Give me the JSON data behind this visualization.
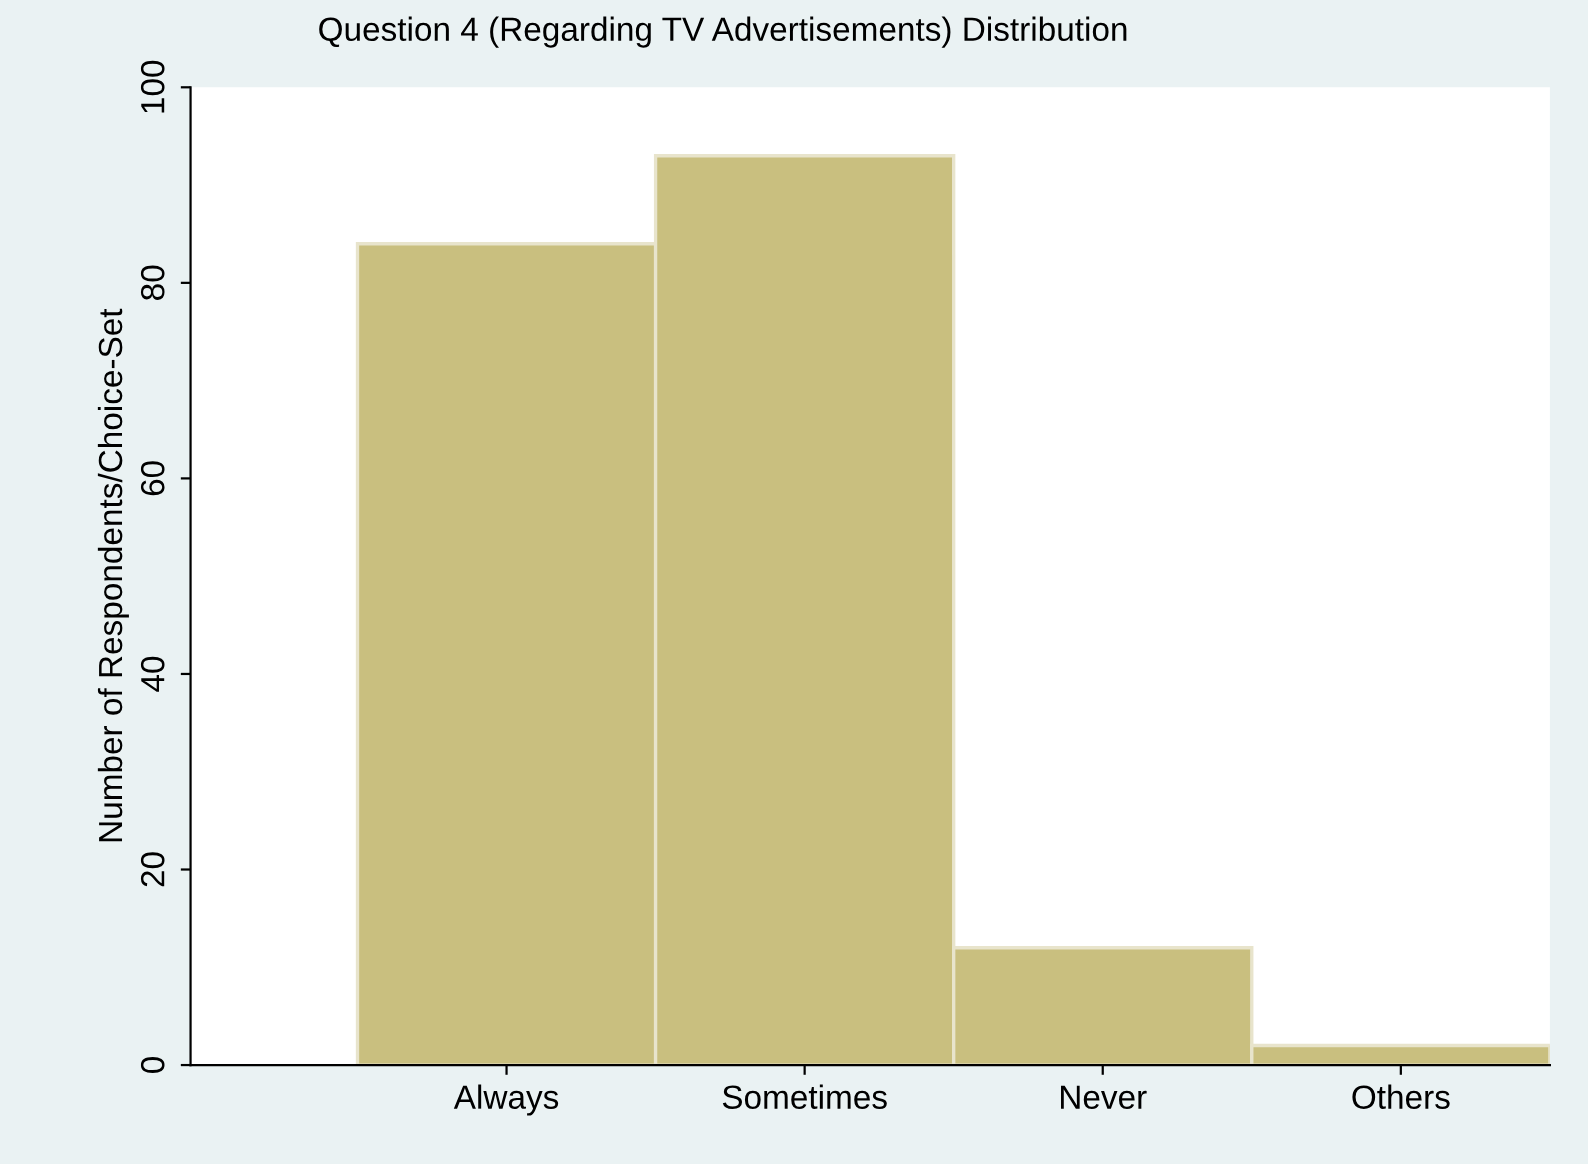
{
  "chart_data": {
    "type": "bar",
    "title": "Question 4 (Regarding TV Advertisements) Distribution",
    "ylabel": "Number of Respondents/Choice-Set",
    "categories": [
      "Always",
      "Sometimes",
      "Never",
      "Others"
    ],
    "values": [
      84,
      93,
      12,
      2
    ],
    "color": "#c9bf7f",
    "ylim": [
      0,
      100
    ],
    "yticks": [
      0,
      20,
      40,
      60,
      80,
      100
    ],
    "grid": false,
    "legend": false
  }
}
